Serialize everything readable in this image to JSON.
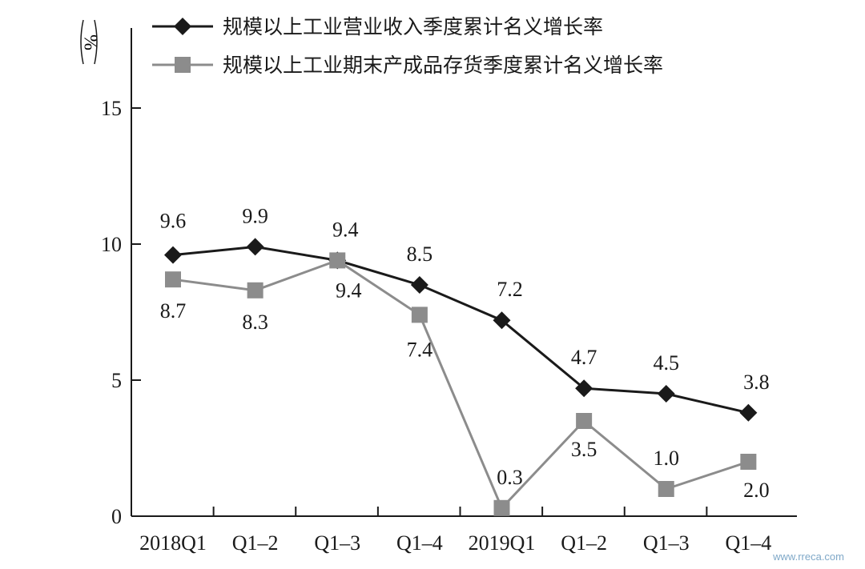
{
  "chart_data": {
    "type": "line",
    "ylabel": "%",
    "ylim": [
      0,
      18
    ],
    "yticks": [
      "0",
      "5",
      "10",
      "15"
    ],
    "ytick_values": [
      0,
      5,
      10,
      15
    ],
    "categories": [
      "2018Q1",
      "Q1–2",
      "Q1–3",
      "Q1–4",
      "2019Q1",
      "Q1–2",
      "Q1–3",
      "Q1–4"
    ],
    "series": [
      {
        "name": "规模以上工业营业收入季度累计名义增长率",
        "values": [
          9.6,
          9.9,
          9.4,
          8.5,
          7.2,
          4.7,
          4.5,
          3.8
        ],
        "labels": [
          "9.6",
          "9.9",
          "9.4",
          "8.5",
          "7.2",
          "4.7",
          "4.5",
          "3.8"
        ],
        "color": "#1a1a1a",
        "marker": "diamond"
      },
      {
        "name": "规模以上工业期末产成品存货季度累计名义增长率",
        "values": [
          8.7,
          8.3,
          9.4,
          7.4,
          0.3,
          3.5,
          1.0,
          2.0
        ],
        "labels": [
          "8.7",
          "8.3",
          "9.4",
          "7.4",
          "0.3",
          "3.5",
          "1.0",
          "2.0"
        ],
        "color": "#8c8c8c",
        "marker": "square"
      }
    ],
    "grid": false,
    "legend": "top"
  },
  "watermark": "www.rreca.com"
}
